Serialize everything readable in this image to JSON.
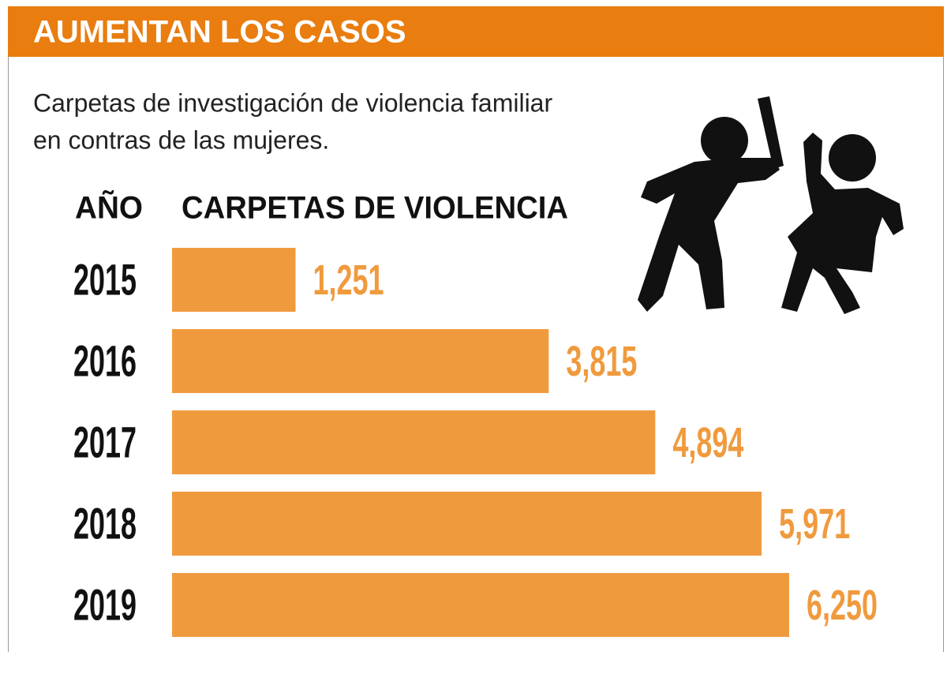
{
  "chart_data": {
    "type": "bar",
    "orientation": "horizontal",
    "title": "AUMENTAN LOS CASOS",
    "subtitle": [
      "Carpetas de investigación de violencia familiar",
      "en contras de las mujeres."
    ],
    "category_label": "AÑO",
    "value_label": "CARPETAS DE VIOLENCIA",
    "categories": [
      "2015",
      "2016",
      "2017",
      "2018",
      "2019"
    ],
    "values": [
      1251,
      3815,
      4894,
      5971,
      6250
    ],
    "value_labels": [
      "1,251",
      "3,815",
      "4,894",
      "5,971",
      "6,250"
    ],
    "color": "#f09a3e",
    "label_color": "#f09a3e",
    "header_color": "#e97d0f"
  }
}
